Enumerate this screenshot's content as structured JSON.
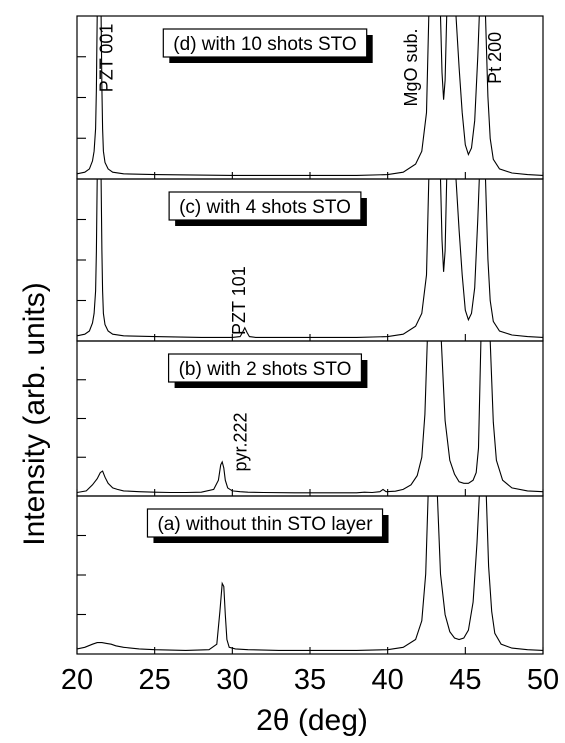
{
  "chart_data": {
    "type": "line",
    "xlabel": "2θ (deg)",
    "ylabel": "Intensity (arb. units)",
    "xlim": [
      20,
      50
    ],
    "x_ticks": [
      20,
      25,
      30,
      35,
      40,
      45,
      50
    ],
    "x_tick_labels": [
      "20",
      "25",
      "30",
      "35",
      "40",
      "45",
      "50"
    ],
    "panels": [
      {
        "id": "d",
        "label": "(d) with 10 shots STO",
        "ylim": [
          0,
          100
        ],
        "annotations": [
          {
            "text": "PZT 001",
            "x": 22.3,
            "y": 74,
            "rotate": true
          },
          {
            "text": "MgO sub.",
            "x": 41.9,
            "y": 68,
            "rotate": true
          },
          {
            "text": "Pt 200",
            "x": 47.3,
            "y": 74,
            "rotate": true
          }
        ],
        "series": [
          {
            "x": [
              20.0,
              20.5,
              20.8,
              21.0,
              21.1,
              21.2,
              21.25,
              21.3,
              21.35,
              21.4,
              21.45,
              21.5,
              21.55,
              21.6,
              21.65,
              21.7,
              21.8,
              22.0,
              22.3,
              23.0,
              25.0,
              30.0,
              35.0,
              38.0,
              40.0,
              41.0,
              41.8,
              42.2,
              42.5,
              42.65,
              42.75,
              42.85,
              43.0,
              43.15,
              43.3,
              43.4,
              43.5,
              43.6,
              43.7,
              43.8,
              43.9,
              44.0,
              44.1,
              44.2,
              44.3,
              44.4,
              44.6,
              44.8,
              45.0,
              45.2,
              45.4,
              45.6,
              45.8,
              45.9,
              46.0,
              46.1,
              46.2,
              46.3,
              46.45,
              46.6,
              46.8,
              47.2,
              48.0,
              49.0,
              50.0
            ],
            "y": [
              2,
              3,
              5,
              10,
              16,
              30,
              55,
              100,
              100,
              100,
              100,
              100,
              100,
              55,
              30,
              16,
              9,
              5,
              3,
              2,
              1.5,
              1,
              1,
              1,
              1.5,
              3,
              8,
              16,
              40,
              100,
              100,
              100,
              100,
              100,
              100,
              100,
              65,
              48,
              60,
              100,
              100,
              100,
              100,
              100,
              100,
              100,
              68,
              40,
              20,
              14,
              18,
              35,
              75,
              100,
              100,
              100,
              100,
              100,
              50,
              24,
              11,
              5,
              2.5,
              1.5,
              1
            ]
          }
        ]
      },
      {
        "id": "c",
        "label": "(c) with 4 shots STO",
        "ylim": [
          0,
          100
        ],
        "annotations": [
          {
            "text": "PZT 101",
            "x": 30.8,
            "y": 24,
            "rotate": true
          }
        ],
        "series": [
          {
            "x": [
              20.0,
              20.5,
              20.8,
              21.0,
              21.1,
              21.2,
              21.25,
              21.3,
              21.35,
              21.4,
              21.45,
              21.5,
              21.55,
              21.6,
              21.65,
              21.7,
              21.8,
              22.0,
              22.3,
              23.0,
              25.0,
              28.0,
              30.0,
              30.5,
              30.65,
              30.8,
              30.95,
              31.1,
              31.5,
              35.0,
              38.0,
              40.0,
              41.0,
              41.8,
              42.2,
              42.5,
              42.65,
              42.75,
              42.85,
              43.0,
              43.15,
              43.3,
              43.4,
              43.5,
              43.6,
              43.7,
              43.8,
              43.9,
              44.0,
              44.1,
              44.2,
              44.3,
              44.4,
              44.6,
              44.8,
              45.0,
              45.2,
              45.4,
              45.6,
              45.8,
              45.9,
              46.0,
              46.1,
              46.2,
              46.3,
              46.45,
              46.6,
              46.8,
              47.2,
              48.0,
              49.0,
              50.0
            ],
            "y": [
              2,
              3,
              5,
              10,
              16,
              30,
              55,
              100,
              100,
              100,
              100,
              100,
              100,
              55,
              30,
              16,
              9,
              5,
              3,
              2,
              1.5,
              1,
              1,
              1.5,
              4,
              7,
              4,
              1.5,
              1,
              1,
              1,
              1.5,
              3,
              8,
              16,
              40,
              100,
              100,
              100,
              100,
              100,
              100,
              100,
              62,
              42,
              55,
              100,
              100,
              100,
              100,
              100,
              100,
              100,
              68,
              40,
              18,
              12,
              16,
              32,
              75,
              100,
              100,
              100,
              100,
              100,
              50,
              24,
              11,
              5,
              2.5,
              1.5,
              1
            ]
          }
        ]
      },
      {
        "id": "b",
        "label": "(b) with 2 shots STO",
        "ylim": [
          0,
          100
        ],
        "annotations": [
          {
            "text": "pyr.222",
            "x": 30.9,
            "y": 34,
            "rotate": true
          }
        ],
        "series": [
          {
            "x": [
              20.0,
              20.6,
              21.0,
              21.3,
              21.5,
              21.65,
              21.8,
              22.0,
              22.3,
              22.6,
              23.0,
              24.0,
              25.0,
              26.0,
              27.0,
              28.0,
              28.8,
              29.1,
              29.25,
              29.35,
              29.45,
              29.55,
              29.7,
              30.0,
              30.5,
              31.0,
              32.0,
              34.0,
              36.0,
              38.0,
              38.5,
              39.0,
              39.5,
              39.7,
              39.9,
              40.5,
              41.0,
              41.5,
              41.9,
              42.2,
              42.4,
              42.55,
              42.7,
              42.85,
              43.0,
              43.15,
              43.3,
              43.45,
              43.7,
              44.0,
              44.3,
              44.6,
              44.9,
              45.2,
              45.5,
              45.7,
              45.85,
              46.0,
              46.15,
              46.3,
              46.45,
              46.6,
              46.8,
              47.0,
              47.4,
              48.0,
              49.0,
              50.0
            ],
            "y": [
              1,
              2,
              6,
              10,
              14,
              15,
              11,
              7,
              4,
              3,
              2,
              1.5,
              1.2,
              1,
              1,
              1.2,
              3,
              9,
              19,
              21,
              17,
              9,
              4,
              2,
              1.5,
              1.2,
              1,
              0.8,
              0.8,
              0.8,
              1.2,
              1,
              1.5,
              3,
              1.5,
              1.8,
              3,
              6,
              12,
              24,
              52,
              100,
              100,
              100,
              100,
              100,
              100,
              100,
              48,
              22,
              13,
              8,
              7,
              7,
              9,
              14,
              30,
              100,
              100,
              100,
              100,
              100,
              47,
              22,
              9,
              4,
              2,
              1.5
            ]
          }
        ]
      },
      {
        "id": "a",
        "label": "(a) without thin STO layer",
        "ylim": [
          0,
          100
        ],
        "annotations": [],
        "series": [
          {
            "x": [
              20.0,
              20.5,
              21.0,
              21.3,
              21.6,
              21.9,
              22.2,
              22.5,
              23.0,
              24.0,
              25.0,
              27.0,
              28.5,
              29.0,
              29.2,
              29.35,
              29.45,
              29.55,
              29.65,
              29.8,
              30.2,
              31.0,
              33.0,
              35.0,
              38.0,
              40.0,
              41.0,
              41.8,
              42.2,
              42.45,
              42.6,
              42.75,
              42.9,
              43.05,
              43.2,
              43.4,
              43.7,
              44.0,
              44.3,
              44.6,
              44.9,
              45.2,
              45.5,
              45.75,
              45.9,
              46.05,
              46.2,
              46.35,
              46.5,
              46.7,
              46.9,
              47.3,
              48.0,
              49.0,
              50.0
            ],
            "y": [
              2,
              3,
              5,
              6,
              6,
              5.5,
              5,
              4,
              3,
              2,
              1.5,
              1,
              1.5,
              5,
              26,
              44,
              42,
              24,
              8,
              3,
              2,
              1.5,
              1,
              1,
              1,
              1.5,
              3,
              8,
              20,
              50,
              100,
              100,
              100,
              100,
              100,
              50,
              24,
              13,
              9,
              8,
              9,
              14,
              32,
              70,
              100,
              100,
              100,
              100,
              55,
              26,
              12,
              5,
              2.5,
              1.5,
              1
            ]
          }
        ]
      }
    ]
  }
}
